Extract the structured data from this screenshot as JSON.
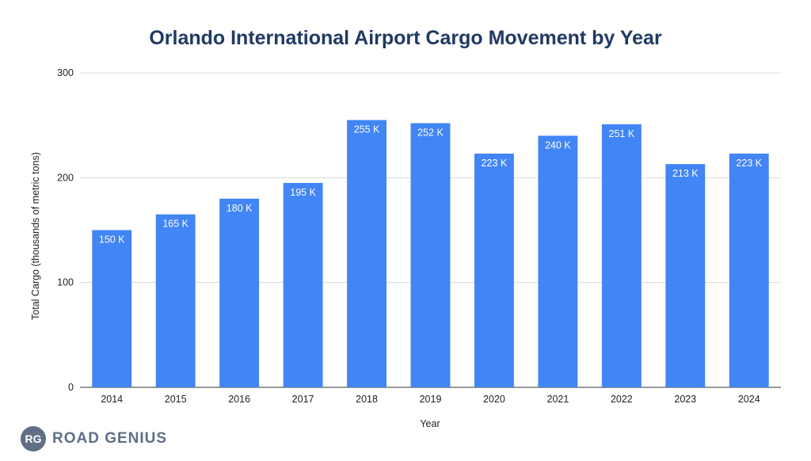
{
  "chart_data": {
    "type": "bar",
    "title": "Orlando International Airport Cargo Movement by Year",
    "xlabel": "Year",
    "ylabel": "Total Cargo (thousands of metric tons)",
    "categories": [
      "2014",
      "2015",
      "2016",
      "2017",
      "2018",
      "2019",
      "2020",
      "2021",
      "2022",
      "2023",
      "2024"
    ],
    "values": [
      150,
      165,
      180,
      195,
      255,
      252,
      223,
      240,
      251,
      213,
      223
    ],
    "data_labels": [
      "150 K",
      "165 K",
      "180 K",
      "195 K",
      "255 K",
      "252 K",
      "223 K",
      "240 K",
      "251 K",
      "213 K",
      "223 K"
    ],
    "ylim": [
      0,
      300
    ],
    "yticks": [
      0,
      100,
      200,
      300
    ],
    "grid": true,
    "legend": "none",
    "bar_color": "#4285f4"
  },
  "brand": {
    "badge": "RG",
    "name": "ROAD GENIUS",
    "color": "#5f6f86"
  }
}
